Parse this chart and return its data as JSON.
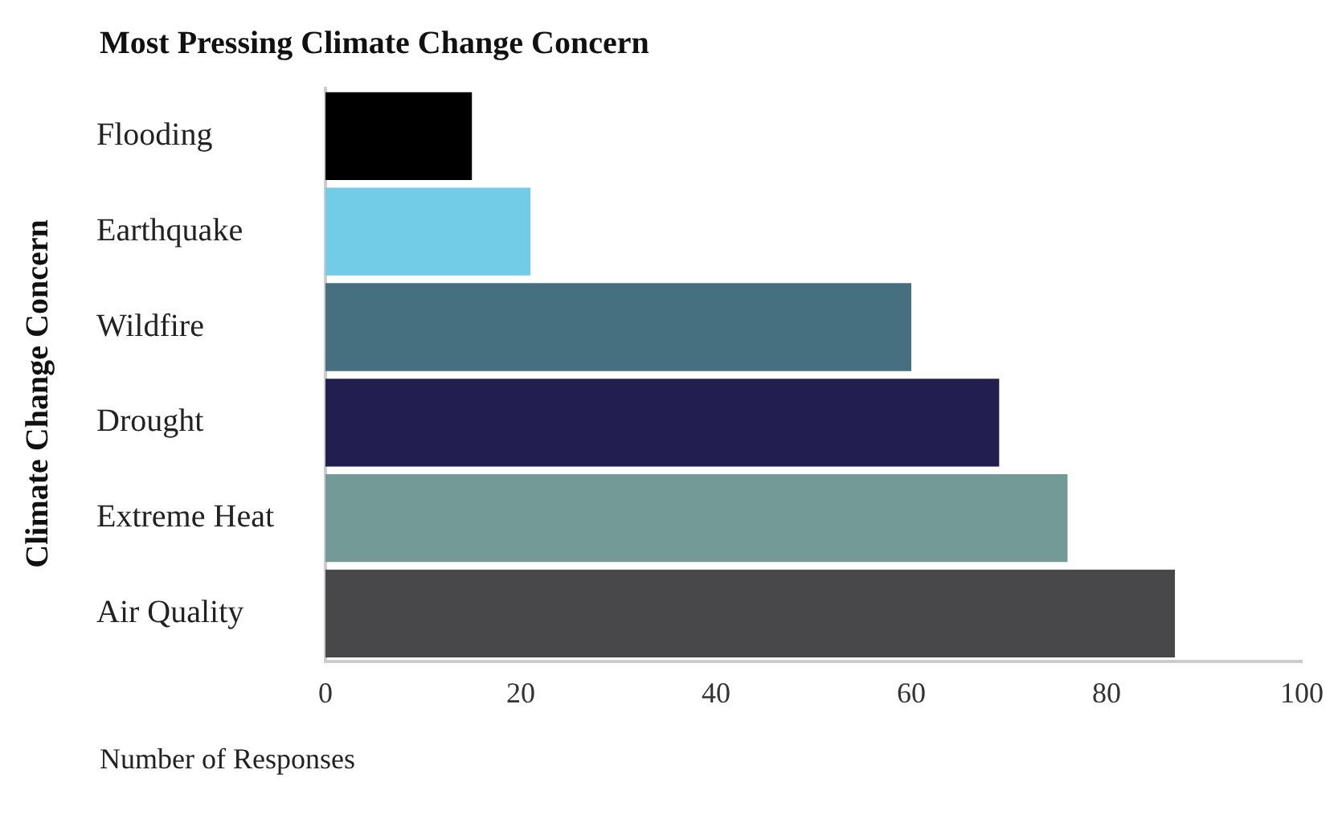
{
  "chart_data": {
    "type": "bar",
    "orientation": "horizontal",
    "title": "Most Pressing Climate Change Concern",
    "xlabel": "Number of Responses",
    "ylabel": "Climate Change Concern",
    "categories": [
      "Flooding",
      "Earthquake",
      "Wildfire",
      "Drought",
      "Extreme Heat",
      "Air Quality"
    ],
    "values": [
      15,
      21,
      60,
      69,
      76,
      87
    ],
    "colors": [
      "#000000",
      "#72cce8",
      "#466f80",
      "#231e50",
      "#739a97",
      "#48484a"
    ],
    "xlim": [
      0,
      100
    ],
    "xticks": [
      0,
      20,
      40,
      60,
      80,
      100
    ],
    "grid": false,
    "legend": false
  }
}
